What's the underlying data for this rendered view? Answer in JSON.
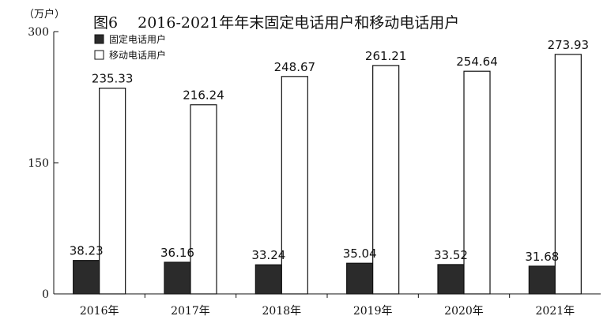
{
  "chart_data": {
    "type": "bar",
    "title": "图6　 2016-2021年年末固定电话用户和移动电话用户",
    "unit_label": "（万户）",
    "categories": [
      "2016年",
      "2017年",
      "2018年",
      "2019年",
      "2020年",
      "2021年"
    ],
    "series": [
      {
        "name": "固定电话用户",
        "values": [
          38.23,
          36.16,
          33.24,
          35.04,
          33.52,
          31.68
        ],
        "fill": "#2b2b2b"
      },
      {
        "name": "移动电话用户",
        "values": [
          235.33,
          216.24,
          248.67,
          261.21,
          254.64,
          273.93
        ],
        "fill": "#ffffff"
      }
    ],
    "ylim": [
      0,
      300
    ],
    "yticks": [
      0,
      150,
      300
    ],
    "legend_position": "top-left",
    "grid": false,
    "stroke": "#111111"
  }
}
